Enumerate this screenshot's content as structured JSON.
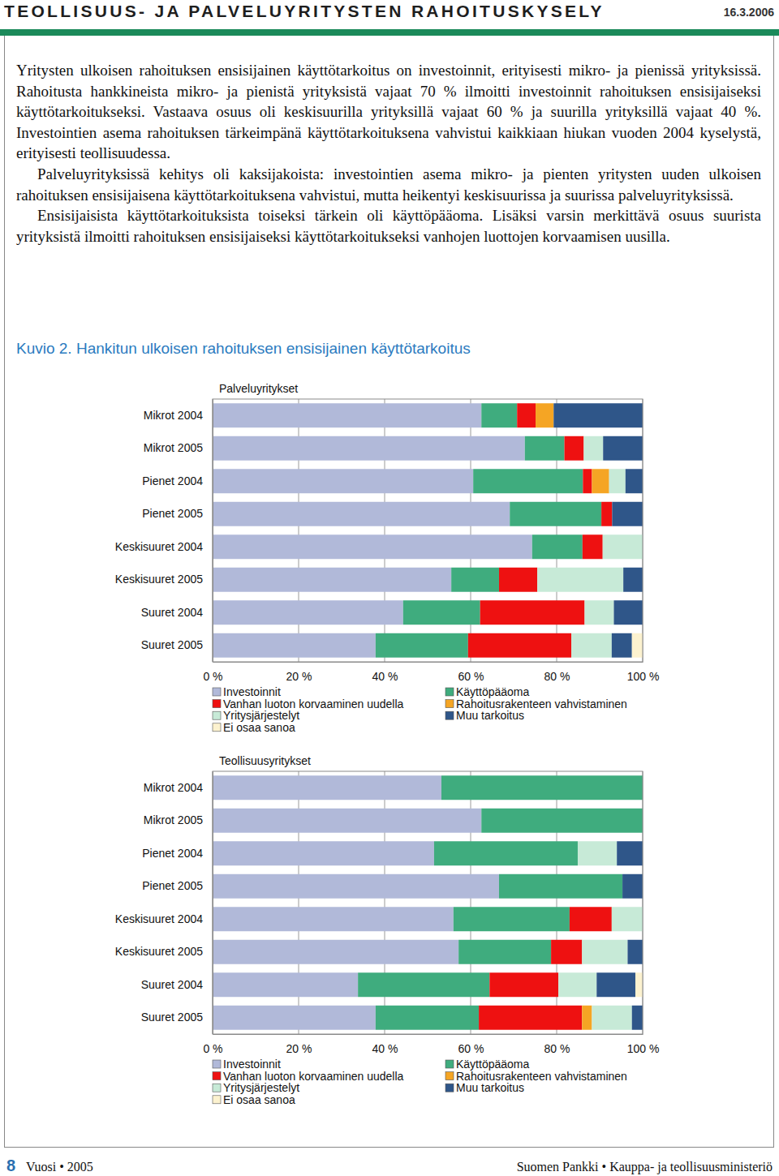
{
  "header": {
    "title": "TEOLLISUUS- JA PALVELUYRITYSTEN RAHOITUSKYSELY",
    "date": "16.3.2006"
  },
  "paragraphs": [
    "Yritysten ulkoisen rahoituksen ensisijainen käyttötarkoitus on investoinnit, erityisesti mikro- ja pienissä yrityksissä. Rahoitusta hankkineista mikro- ja pienistä yrityksistä vajaat 70 % ilmoitti investoinnit rahoituksen ensisijaiseksi käyttötarkoitukseksi. Vastaava osuus oli keskisuurilla yrityksillä vajaat 60 % ja suurilla yrityksillä vajaat 40 %. Investointien asema rahoituksen tärkeimpänä käyttötarkoituksena vahvistui kaikkiaan hiukan vuoden 2004 kyselystä, erityisesti teollisuudessa.",
    "Palveluyrityksissä kehitys oli kaksijakoista: investointien asema mikro- ja pienten yritysten uuden ulkoisen rahoituksen ensisijaisena käyttötarkoituksena vahvistui, mutta heikentyi keskisuurissa ja suurissa palveluyrityksissä.",
    "Ensisijaisista käyttötarkoituksista toiseksi tärkein oli käyttöpääoma. Lisäksi varsin merkittävä osuus suurista yrityksistä ilmoitti rahoituksen ensisijaiseksi käyttötarkoitukseksi vanhojen luottojen korvaamisen uusilla."
  ],
  "figure_caption": "Kuvio 2. Hankitun ulkoisen rahoituksen ensisijainen käyttötarkoitus",
  "chart_data": [
    {
      "type": "bar",
      "orientation": "horizontal",
      "stacked": true,
      "grid": true,
      "legend": "bottom",
      "title": "Palveluyritykset",
      "categories": [
        "Mikrot 2004",
        "Mikrot 2005",
        "Pienet 2004",
        "Pienet 2005",
        "Keskisuuret 2004",
        "Keskisuuret 2005",
        "Suuret 2004",
        "Suuret 2005"
      ],
      "xlim": [
        0,
        100
      ],
      "xticks": [
        {
          "value": 0,
          "label": "0 %"
        },
        {
          "value": 20,
          "label": "20 %"
        },
        {
          "value": 40,
          "label": "40 %"
        },
        {
          "value": 60,
          "label": "60 %"
        },
        {
          "value": 80,
          "label": "80 %"
        },
        {
          "value": 100,
          "label": "100 %"
        }
      ],
      "series": [
        {
          "name": "Investoinnit",
          "color": "#b1b9d9",
          "values": [
            62.5,
            72.6,
            60.6,
            69.1,
            74.3,
            55.5,
            44.3,
            37.9
          ]
        },
        {
          "name": "Käyttöpääoma",
          "color": "#3fac7e",
          "values": [
            8.3,
            9.2,
            25.5,
            21.3,
            11.7,
            11.1,
            17.9,
            21.5
          ]
        },
        {
          "name": "Vanhan luoton korvaaminen uudella",
          "color": "#ee1111",
          "values": [
            4.3,
            4.5,
            2.1,
            2.5,
            4.7,
            8.9,
            24.3,
            24.0
          ]
        },
        {
          "name": "Rahoitusrakenteen vahvistaminen",
          "color": "#f5a524",
          "values": [
            4.2,
            0,
            4.0,
            0,
            0,
            0,
            0,
            0
          ]
        },
        {
          "name": "Yritysjärjestelyt",
          "color": "#c7ead7",
          "values": [
            0,
            4.5,
            3.8,
            0,
            9.3,
            20.0,
            6.8,
            9.4
          ]
        },
        {
          "name": "Muu tarkoitus",
          "color": "#2f5689",
          "values": [
            20.7,
            9.2,
            4.0,
            7.1,
            0,
            4.5,
            6.7,
            4.7
          ]
        },
        {
          "name": "Ei osaa sanoa",
          "color": "#fcf2cf",
          "values": [
            0,
            0,
            0,
            0,
            0,
            0,
            0,
            2.5
          ]
        }
      ]
    },
    {
      "type": "bar",
      "orientation": "horizontal",
      "stacked": true,
      "grid": true,
      "legend": "bottom",
      "title": "Teollisuusyritykset",
      "categories": [
        "Mikrot 2004",
        "Mikrot 2005",
        "Pienet 2004",
        "Pienet 2005",
        "Keskisuuret 2004",
        "Keskisuuret 2005",
        "Suuret 2004",
        "Suuret 2005"
      ],
      "xlim": [
        0,
        100
      ],
      "xticks": [
        {
          "value": 0,
          "label": "0 %"
        },
        {
          "value": 20,
          "label": "20 %"
        },
        {
          "value": 40,
          "label": "40 %"
        },
        {
          "value": 60,
          "label": "60 %"
        },
        {
          "value": 80,
          "label": "80 %"
        },
        {
          "value": 100,
          "label": "100 %"
        }
      ],
      "series": [
        {
          "name": "Investoinnit",
          "color": "#b1b9d9",
          "values": [
            53.2,
            62.5,
            51.5,
            66.6,
            56.0,
            57.2,
            33.8,
            37.9
          ]
        },
        {
          "name": "Käyttöpääoma",
          "color": "#3fac7e",
          "values": [
            46.8,
            37.5,
            33.4,
            28.7,
            27.0,
            21.5,
            30.6,
            24.0
          ]
        },
        {
          "name": "Vanhan luoton korvaaminen uudella",
          "color": "#ee1111",
          "values": [
            0,
            0,
            0,
            0,
            9.8,
            7.2,
            16.0,
            24.0
          ]
        },
        {
          "name": "Rahoitusrakenteen vahvistaminen",
          "color": "#f5a524",
          "values": [
            0,
            0,
            0,
            0,
            0,
            0,
            0,
            2.3
          ]
        },
        {
          "name": "Yritysjärjestelyt",
          "color": "#c7ead7",
          "values": [
            0,
            0,
            9.1,
            0,
            7.2,
            10.6,
            8.9,
            9.3
          ]
        },
        {
          "name": "Muu tarkoitus",
          "color": "#2f5689",
          "values": [
            0,
            0,
            6.0,
            4.7,
            0,
            3.5,
            9.0,
            2.5
          ]
        },
        {
          "name": "Ei osaa sanoa",
          "color": "#fcf2cf",
          "values": [
            0,
            0,
            0,
            0,
            0,
            0,
            1.7,
            0
          ]
        }
      ]
    }
  ],
  "footer": {
    "page": 8,
    "publication": "Vuosi • 2005",
    "publisher": "Suomen Pankki • Kauppa- ja teollisuusministeriö"
  }
}
